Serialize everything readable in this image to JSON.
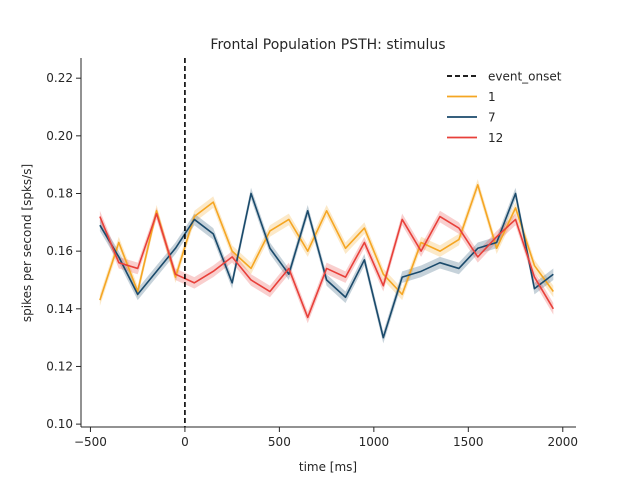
{
  "chart_data": {
    "type": "line",
    "title": "Frontal Population PSTH: stimulus",
    "xlabel": "time [ms]",
    "ylabel": "spikes per second [spks/s]",
    "xlim": [
      -550,
      2070
    ],
    "ylim": [
      0.099,
      0.227
    ],
    "xticks": [
      -500,
      0,
      500,
      1000,
      1500,
      2000
    ],
    "xtick_labels": [
      "−500",
      "0",
      "500",
      "1000",
      "1500",
      "2000"
    ],
    "yticks": [
      0.1,
      0.12,
      0.14,
      0.16,
      0.18,
      0.2,
      0.22
    ],
    "ytick_labels": [
      "0.10",
      "0.12",
      "0.14",
      "0.16",
      "0.18",
      "0.20",
      "0.22"
    ],
    "grid": false,
    "legend_position": "top-right",
    "event_line": {
      "name": "event_onset",
      "x": 0,
      "color": "#000000",
      "style": "dashed"
    },
    "x": [
      -450,
      -350,
      -250,
      -150,
      -50,
      50,
      150,
      250,
      350,
      450,
      550,
      650,
      750,
      850,
      950,
      1050,
      1150,
      1250,
      1350,
      1450,
      1550,
      1650,
      1750,
      1850,
      1950
    ],
    "series": [
      {
        "name": "1",
        "color": "#f5a623",
        "values": [
          0.143,
          0.163,
          0.146,
          0.174,
          0.151,
          0.172,
          0.177,
          0.16,
          0.154,
          0.167,
          0.171,
          0.16,
          0.174,
          0.161,
          0.168,
          0.152,
          0.145,
          0.163,
          0.16,
          0.164,
          0.183,
          0.161,
          0.175,
          0.155,
          0.146
        ],
        "band": 0.002
      },
      {
        "name": "7",
        "color": "#1a4a6b",
        "values": [
          0.169,
          0.158,
          0.145,
          0.153,
          0.161,
          0.171,
          0.166,
          0.149,
          0.18,
          0.161,
          0.152,
          0.174,
          0.15,
          0.144,
          0.157,
          0.13,
          0.151,
          0.153,
          0.156,
          0.154,
          0.161,
          0.163,
          0.18,
          0.147,
          0.152
        ],
        "band": 0.002
      },
      {
        "name": "12",
        "color": "#e8403a",
        "values": [
          0.172,
          0.156,
          0.154,
          0.173,
          0.152,
          0.149,
          0.153,
          0.158,
          0.15,
          0.146,
          0.154,
          0.137,
          0.154,
          0.151,
          0.163,
          0.148,
          0.171,
          0.16,
          0.172,
          0.168,
          0.158,
          0.165,
          0.171,
          0.151,
          0.14
        ],
        "band": 0.002
      }
    ]
  }
}
